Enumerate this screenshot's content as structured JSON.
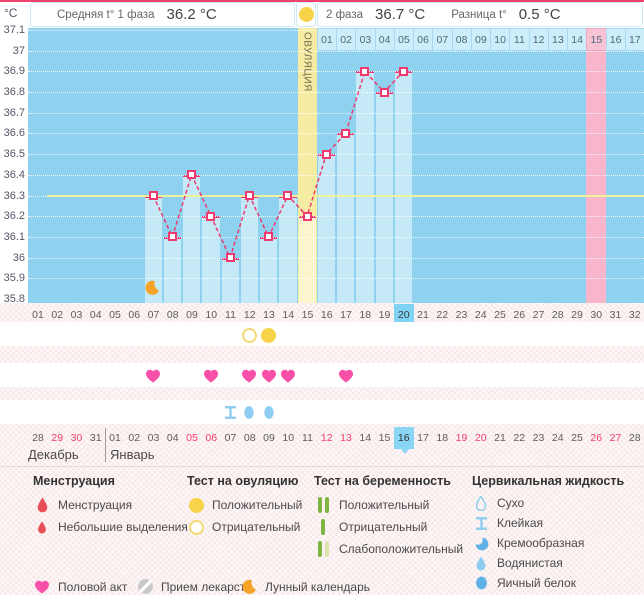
{
  "colors": {
    "accent": "#ee3a6e",
    "top_line": "#f0416e",
    "chart_bg": "#8ed2ef",
    "bar_fill": "#c6e9f8",
    "ovulation_col": "#f6eba2",
    "ovulation_bar": "#fbf5cd",
    "pink_col": "#f9b5cb",
    "dpo_cell_bg": "#cdedfa",
    "dpo_pink_cell": "#f9c3d5",
    "today_blue": "#7ed2f3",
    "date_today_blue": "#8ad4f4",
    "coverline": "#eef39b",
    "red_date": "#f53d66",
    "heart": "#f850a8",
    "moon": "#f6a327",
    "test_yellow": "#f6d348",
    "test_outline": "#f3d973",
    "drop_red": "#e94f56",
    "green": "#7cb53f",
    "green_pale": "#d9e3ad",
    "cm_blue": "#8dcdf1",
    "cm_blue_dark": "#5fb2e6",
    "pill_gray": "#cacaca"
  },
  "header": {
    "unit": "°C",
    "phase1_label": "Средняя t° 1 фаза",
    "phase1_value": "36.2 °C",
    "phase2_label": "2 фаза",
    "phase2_value": "36.7 °C",
    "diff_label": "Разница t°",
    "diff_value": "0.5 °C"
  },
  "chart_data": {
    "type": "line",
    "ylabel": "°C",
    "ylim": [
      35.8,
      37.1
    ],
    "ytick_step": 0.1,
    "yticks": [
      "37.1",
      "37",
      "36.9",
      "36.8",
      "36.7",
      "36.6",
      "36.5",
      "36.4",
      "36.3",
      "36.2",
      "36.1",
      "36",
      "35.9",
      "35.8"
    ],
    "x_days": [
      "01",
      "02",
      "03",
      "04",
      "05",
      "06",
      "07",
      "08",
      "09",
      "10",
      "11",
      "12",
      "13",
      "14",
      "15",
      "16",
      "17",
      "18",
      "19",
      "20",
      "21",
      "22",
      "23",
      "24",
      "25",
      "26",
      "27",
      "28",
      "29",
      "30",
      "31",
      "32"
    ],
    "series": [
      {
        "name": "temperature",
        "points": [
          [
            7,
            36.3
          ],
          [
            8,
            36.1
          ],
          [
            9,
            36.4
          ],
          [
            10,
            36.2
          ],
          [
            11,
            36.0
          ],
          [
            12,
            36.3
          ],
          [
            13,
            36.1
          ],
          [
            14,
            36.3
          ],
          [
            15,
            36.2
          ],
          [
            16,
            36.5
          ],
          [
            17,
            36.6
          ],
          [
            18,
            36.9
          ],
          [
            19,
            36.8
          ],
          [
            20,
            36.9
          ]
        ]
      }
    ],
    "coverline": {
      "value": 36.3,
      "start_day": 2
    },
    "ovulation": {
      "day": 15,
      "label": "ОВУЛЯЦИЯ"
    },
    "pink_day": 30,
    "today_day": 20,
    "moon_day": 7,
    "dpo_labels": [
      "01",
      "02",
      "03",
      "04",
      "05",
      "06",
      "07",
      "08",
      "09",
      "10",
      "11",
      "12",
      "13",
      "14",
      "15",
      "16",
      "17"
    ],
    "dpo_pink_label": "15",
    "grid": true,
    "legend_position": "bottom"
  },
  "marker_rows": {
    "ovulation_tests": [
      {
        "day": 12,
        "result": "Отрицательный"
      },
      {
        "day": 13,
        "result": "Положительный"
      }
    ],
    "intercourse_days": [
      7,
      10,
      12,
      13,
      14,
      17
    ],
    "cervical_fluid": [
      {
        "day": 11,
        "type": "Клейкая"
      },
      {
        "day": 12,
        "type": "Водянистая"
      },
      {
        "day": 13,
        "type": "Водянистая"
      }
    ]
  },
  "calendar": {
    "months": [
      {
        "label": "Декабрь"
      },
      {
        "label": "Январь"
      }
    ],
    "dates": [
      "28",
      "29",
      "30",
      "31",
      "01",
      "02",
      "03",
      "04",
      "05",
      "06",
      "07",
      "08",
      "09",
      "10",
      "11",
      "12",
      "13",
      "14",
      "15",
      "16",
      "17",
      "18",
      "19",
      "20",
      "21",
      "22",
      "23",
      "24",
      "25",
      "26",
      "27",
      "28"
    ],
    "red_indices": [
      1,
      2,
      8,
      9,
      15,
      16,
      22,
      23,
      29,
      30
    ],
    "today_index": 19,
    "divider_after_index": 3
  },
  "legend": {
    "menstruation": {
      "title": "Менструация",
      "items": [
        {
          "icon": "drop-large",
          "label": "Менструация"
        },
        {
          "icon": "drop-small",
          "label": "Небольшие выделения"
        }
      ]
    },
    "ovulation_test": {
      "title": "Тест на овуляцию",
      "items": [
        {
          "icon": "circle-filled",
          "label": "Положительный"
        },
        {
          "icon": "circle-outline",
          "label": "Отрицательный"
        }
      ]
    },
    "pregnancy_test": {
      "title": "Тест на беременность",
      "items": [
        {
          "icon": "bars-two",
          "label": "Положительный"
        },
        {
          "icon": "bar-one",
          "label": "Отрицательный"
        },
        {
          "icon": "bars-weak",
          "label": "Слабоположительный"
        }
      ]
    },
    "cervical_fluid": {
      "title": "Цервикальная жидкость",
      "items": [
        {
          "icon": "drop-outline",
          "label": "Сухо"
        },
        {
          "icon": "ibeam",
          "label": "Клейкая"
        },
        {
          "icon": "drop-crescent",
          "label": "Кремообразная"
        },
        {
          "icon": "drop-blue",
          "label": "Водянистая"
        },
        {
          "icon": "ellipse-blue",
          "label": "Яичный белок"
        }
      ]
    },
    "extra": [
      {
        "icon": "heart",
        "label": "Половой акт"
      },
      {
        "icon": "pill",
        "label": "Прием лекарств"
      },
      {
        "icon": "moon",
        "label": "Лунный календарь"
      }
    ]
  }
}
